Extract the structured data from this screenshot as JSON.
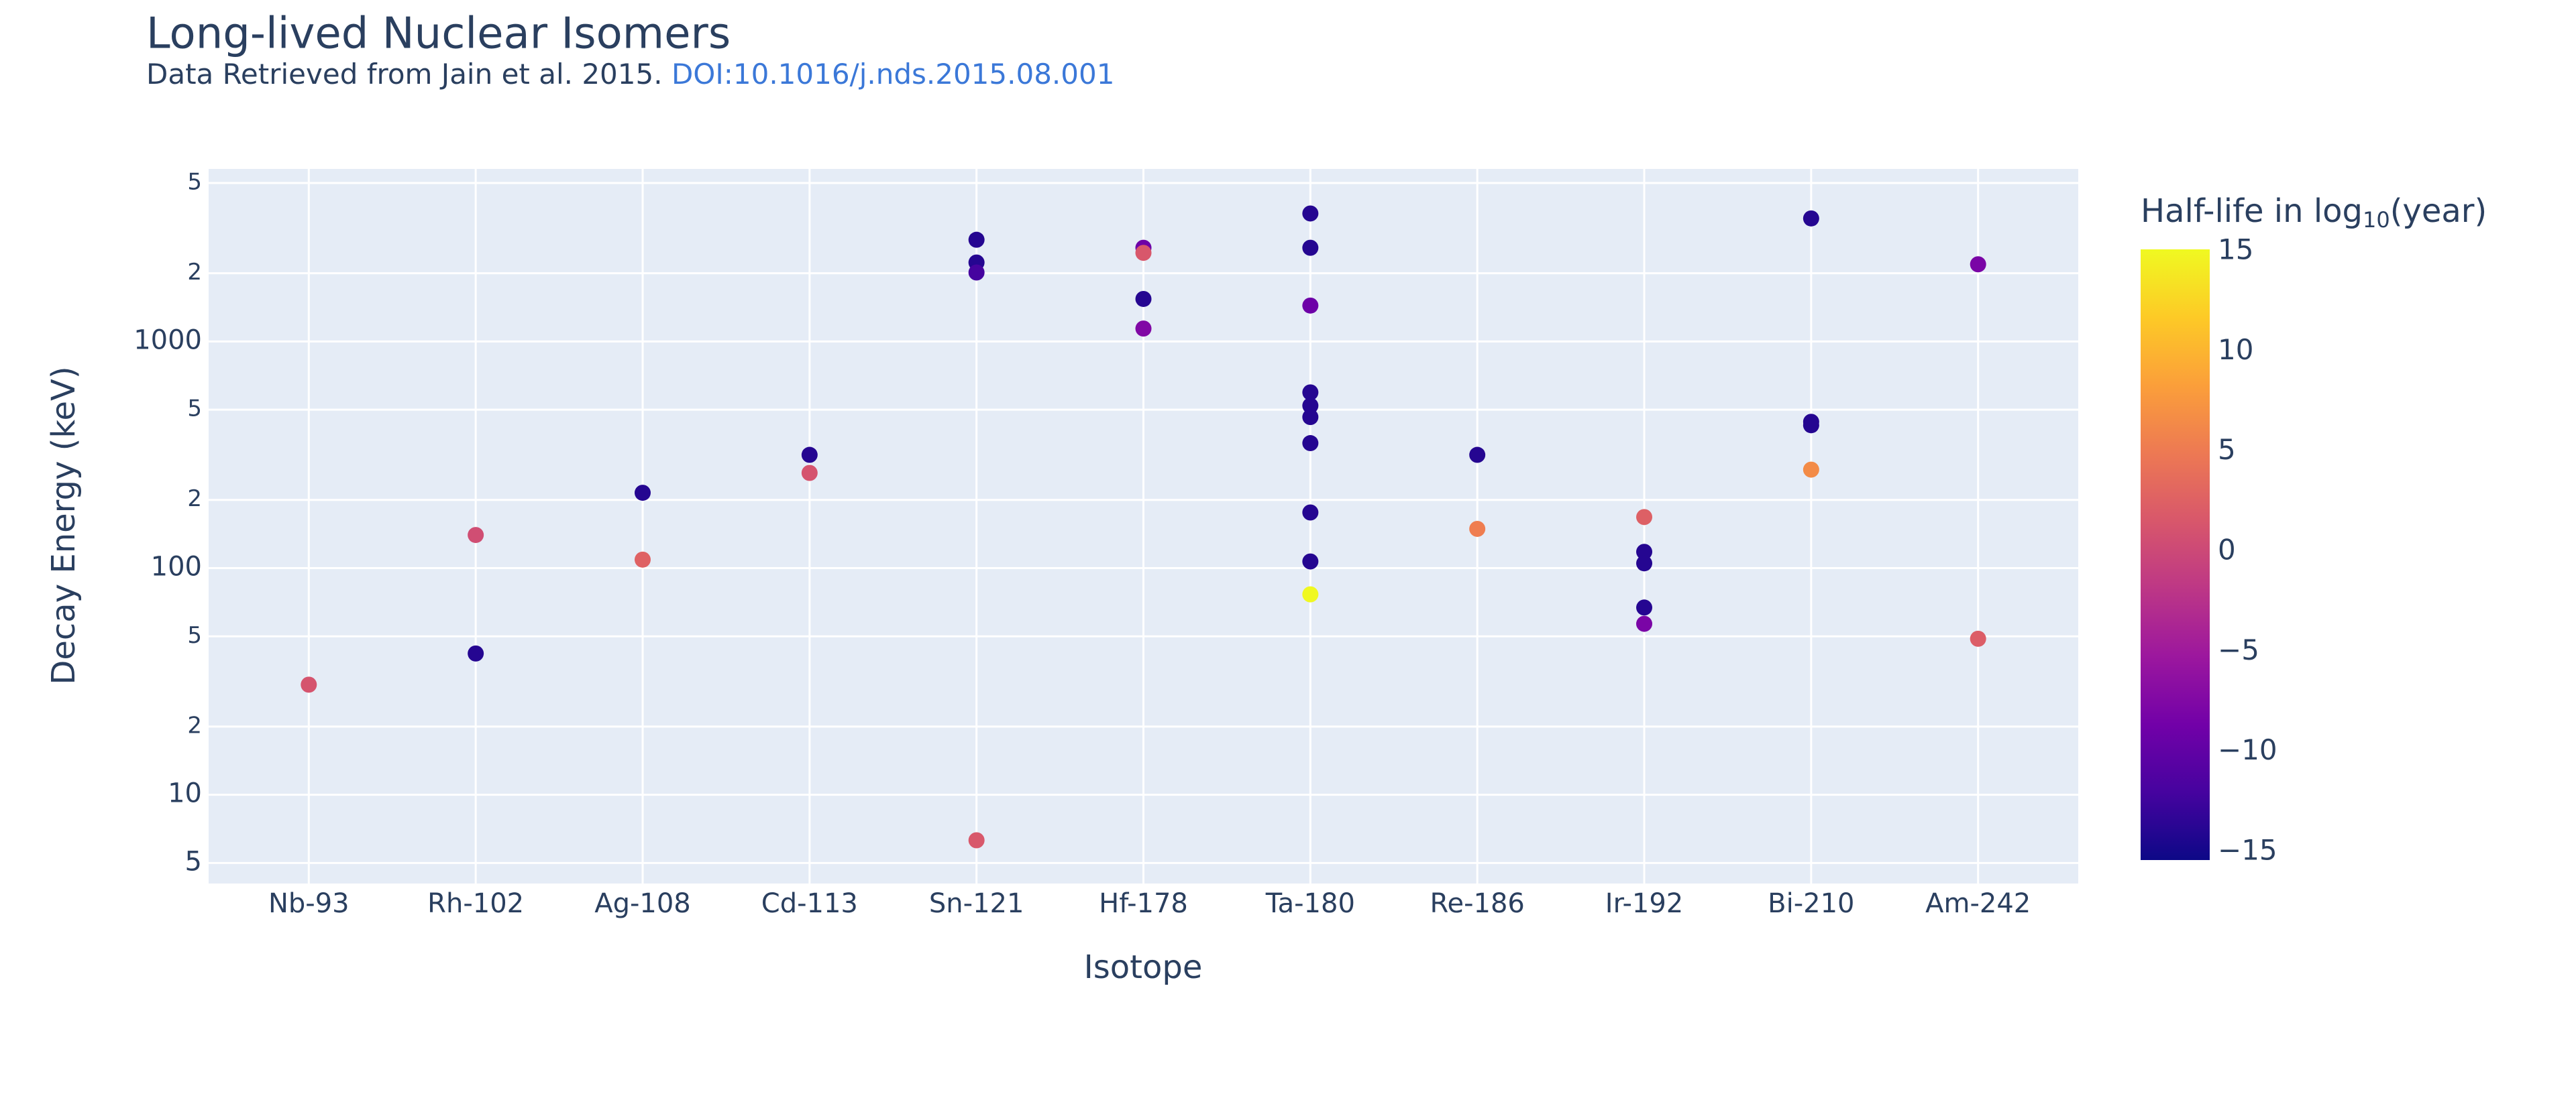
{
  "chart_data": {
    "type": "scatter",
    "title": "Long-lived Nuclear Isomers",
    "subtitle": "Data Retrieved from Jain et al. 2015. ",
    "subtitle_link": "DOI:10.1016/j.nds.2015.08.001",
    "x_label": "Isotope",
    "y_label": "Decay Energy (keV)",
    "categories": [
      "Nb-93",
      "Rh-102",
      "Ag-108",
      "Cd-113",
      "Sn-121",
      "Hf-178",
      "Ta-180",
      "Re-186",
      "Ir-192",
      "Bi-210",
      "Am-242"
    ],
    "x": [
      "Nb-93",
      "Rh-102",
      "Rh-102",
      "Ag-108",
      "Ag-108",
      "Cd-113",
      "Cd-113",
      "Sn-121",
      "Sn-121",
      "Sn-121",
      "Sn-121",
      "Hf-178",
      "Hf-178",
      "Hf-178",
      "Hf-178",
      "Ta-180",
      "Ta-180",
      "Ta-180",
      "Ta-180",
      "Ta-180",
      "Ta-180",
      "Ta-180",
      "Ta-180",
      "Ta-180",
      "Ta-180",
      "Re-186",
      "Re-186",
      "Ir-192",
      "Ir-192",
      "Ir-192",
      "Ir-192",
      "Ir-192",
      "Bi-210",
      "Bi-210",
      "Bi-210",
      "Bi-210",
      "Am-242",
      "Am-242"
    ],
    "values": [
      30.6,
      140,
      42,
      215,
      109,
      316,
      263,
      2810,
      2230,
      2015,
      6.3,
      2590,
      2460,
      1540,
      1140,
      3670,
      2590,
      1440,
      596,
      521,
      464,
      356,
      176,
      107,
      76.6,
      316,
      149,
      168,
      118,
      105,
      67,
      56.8,
      3490,
      442,
      427,
      272,
      2190,
      48.8
    ],
    "halflife_log10": [
      1.2,
      0.6,
      -14,
      -14,
      2.6,
      -14,
      1.15,
      -14,
      -14,
      -12,
      1.6,
      -9,
      1.5,
      -14,
      -7.5,
      -14,
      -14,
      -9,
      -14,
      -14,
      -14,
      -14,
      -14,
      -14,
      15,
      -14,
      5.3,
      2.4,
      -14,
      -14,
      -14,
      -8,
      -14,
      -14,
      -14,
      6.5,
      -8,
      2.15
    ],
    "ylog": true,
    "ylim": [
      4.06,
      5770
    ],
    "yticks": [
      5,
      {
        "value": 10,
        "label": "10"
      },
      {
        "value": 20,
        "label": "2"
      },
      {
        "value": 50,
        "label": "5"
      },
      100,
      {
        "value": 200,
        "label": "2"
      },
      {
        "value": 500,
        "label": "5"
      },
      1000,
      {
        "value": 2000,
        "label": "2"
      },
      {
        "value": 5000,
        "label": "5"
      }
    ],
    "grid": true,
    "colorbar_title": "Half-life in log",
    "colorbar_title_sub": "10",
    "colorbar_title_end": "(year)",
    "clim": [
      -15.4,
      15.1
    ],
    "cticks": [
      15,
      10,
      5,
      0,
      {
        "value": -5,
        "label": "−5"
      },
      {
        "value": -10,
        "label": "−10"
      },
      {
        "value": -15,
        "label": "−15"
      }
    ],
    "colorscale": [
      "#0d0887",
      "#46039f",
      "#7201a8",
      "#9c179e",
      "#bd3786",
      "#d8576b",
      "#ed7953",
      "#fb9f3a",
      "#fdca26",
      "#f0f921"
    ]
  }
}
